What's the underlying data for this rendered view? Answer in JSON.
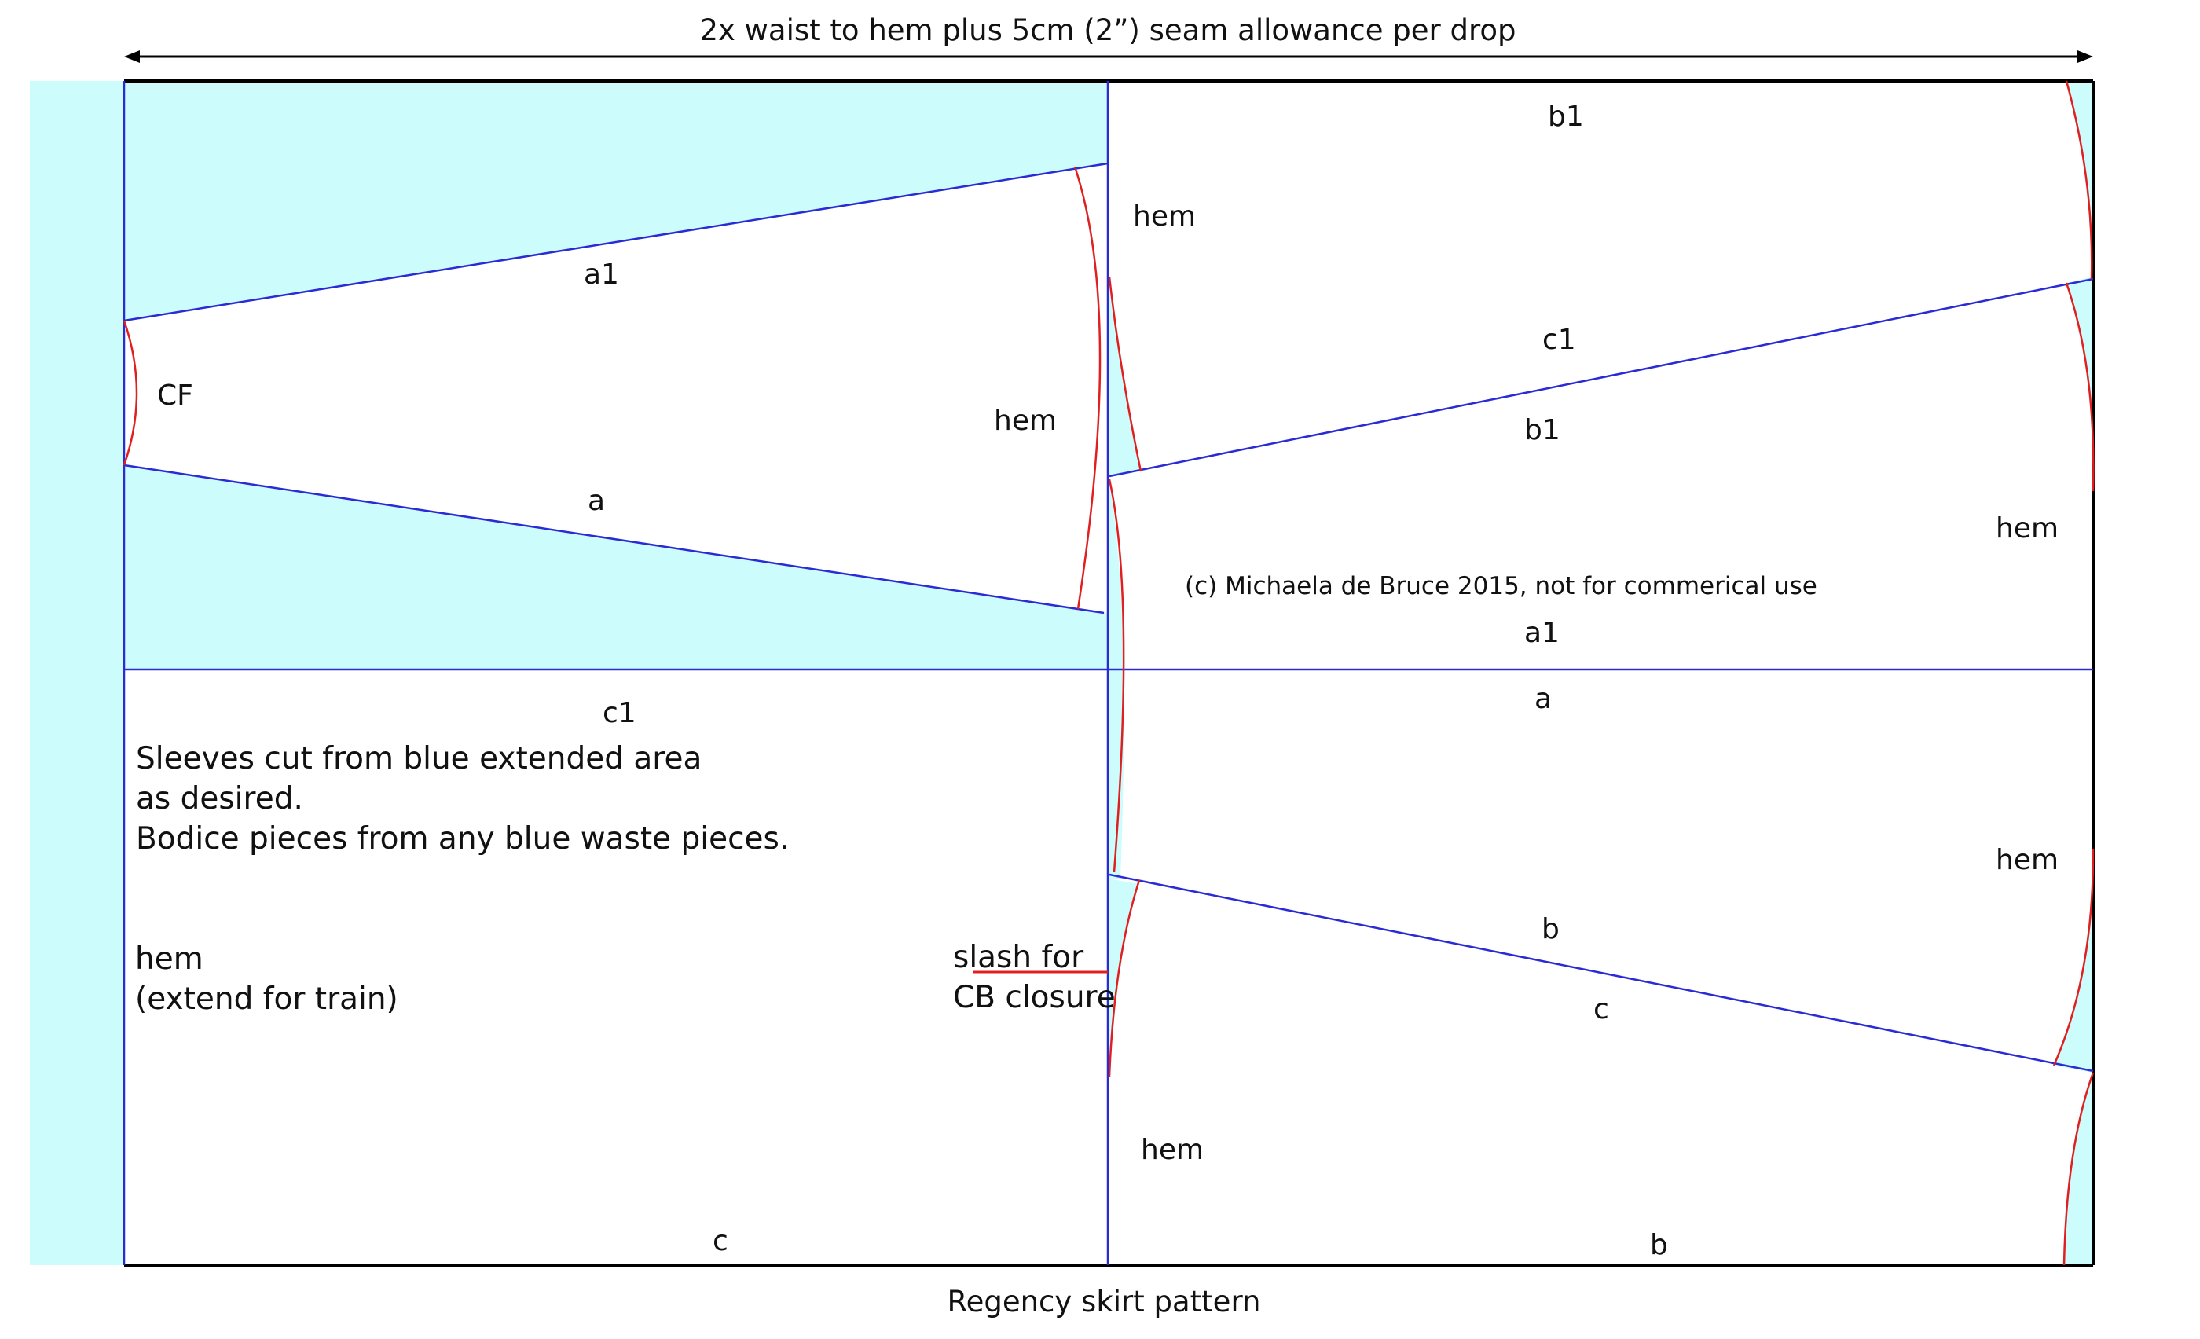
{
  "diagram": {
    "title": "Regency skirt pattern",
    "top_measure": "2x waist to hem plus 5cm (2”) seam allowance per drop",
    "copyright": "(c) Michaela de Bruce 2015, not for commerical use",
    "labels": {
      "cf": "CF",
      "a": "a",
      "a1": "a1",
      "b": "b",
      "b1": "b1",
      "c": "c",
      "c1": "c1",
      "hem": "hem"
    },
    "notes": {
      "sleeves_line1": "Sleeves cut from blue extended area",
      "sleeves_line2": "as desired.",
      "bodice_line": "Bodice pieces from any blue waste pieces.",
      "hem_train_line1": "hem",
      "hem_train_line2": "(extend for train)",
      "slash_line1": "slash for",
      "slash_line2": "CB closure"
    },
    "colors": {
      "waste_fill": "#ccfcfc",
      "seam_line": "#2b2bd6",
      "curve_line": "#e02020",
      "outline": "#000000"
    }
  }
}
